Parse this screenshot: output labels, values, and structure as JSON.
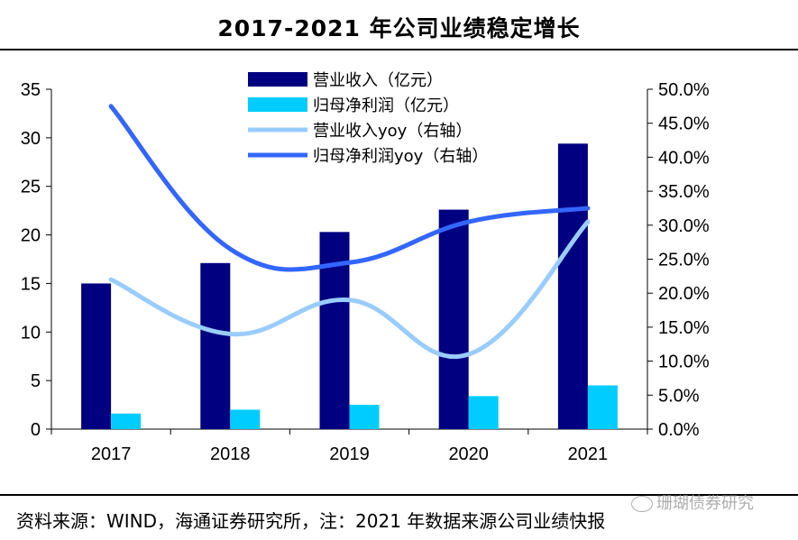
{
  "title": "2017-2021 年公司业绩稳定增长",
  "footer": "资料来源：WIND，海通证券研究所，注：2021 年数据来源公司业绩快报",
  "watermark": "珊瑚债券研究",
  "chart_data": {
    "type": "bar+line",
    "categories": [
      "2017",
      "2018",
      "2019",
      "2020",
      "2021"
    ],
    "left_axis": {
      "min": 0,
      "max": 35,
      "step": 5,
      "ticks": [
        "0",
        "5",
        "10",
        "15",
        "20",
        "25",
        "30",
        "35"
      ]
    },
    "right_axis": {
      "min": 0,
      "max": 50,
      "step": 5,
      "ticks": [
        "0.0%",
        "5.0%",
        "10.0%",
        "15.0%",
        "20.0%",
        "25.0%",
        "30.0%",
        "35.0%",
        "40.0%",
        "45.0%",
        "50.0%"
      ]
    },
    "series": [
      {
        "name": "营业收入（亿元）",
        "type": "bar",
        "axis": "left",
        "color": "#000080",
        "values": [
          15.0,
          17.1,
          20.3,
          22.6,
          29.4
        ]
      },
      {
        "name": "归母净利润（亿元）",
        "type": "bar",
        "axis": "left",
        "color": "#00ccff",
        "values": [
          1.6,
          2.0,
          2.5,
          3.4,
          4.5
        ]
      },
      {
        "name": "营业收入yoy（右轴）",
        "type": "line",
        "axis": "right",
        "color": "#99ccff",
        "values": [
          22.0,
          14.0,
          19.0,
          11.0,
          30.5
        ]
      },
      {
        "name": "归母净利润yoy（右轴）",
        "type": "line",
        "axis": "right",
        "color": "#3366ff",
        "values": [
          47.5,
          26.5,
          24.5,
          30.5,
          32.5
        ]
      }
    ],
    "legend_position": "top-center"
  }
}
